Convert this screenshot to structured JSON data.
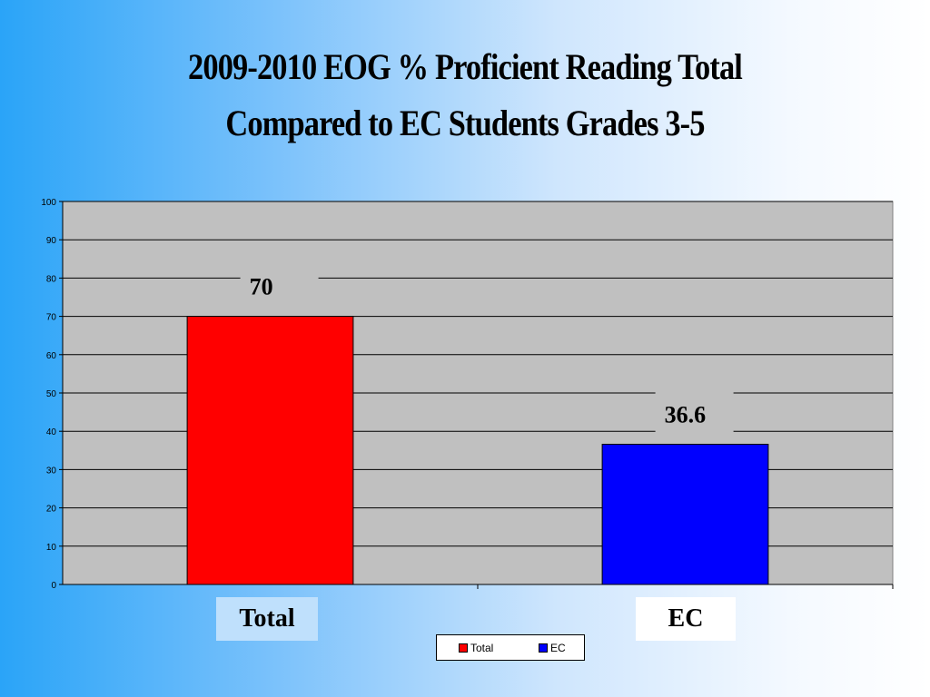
{
  "chart_data": {
    "type": "bar",
    "title": "2009-2010 EOG % Proficient Reading Total",
    "subtitle": "Compared to EC Students Grades 3-5",
    "categories": [
      "Total",
      "EC"
    ],
    "values": [
      70,
      36.6
    ],
    "data_labels": [
      "70",
      "36.6"
    ],
    "bar_colors": [
      "#ff0000",
      "#0000ff"
    ],
    "ylim": [
      0,
      100
    ],
    "yticks": [
      0,
      10,
      20,
      30,
      40,
      50,
      60,
      70,
      80,
      90,
      100
    ],
    "grid": true,
    "plot_background": "#c0c0c0",
    "legend": {
      "placement": "bottom",
      "entries": [
        {
          "label": "Total",
          "color": "#ff0000"
        },
        {
          "label": "EC",
          "color": "#0000ff"
        }
      ]
    }
  }
}
